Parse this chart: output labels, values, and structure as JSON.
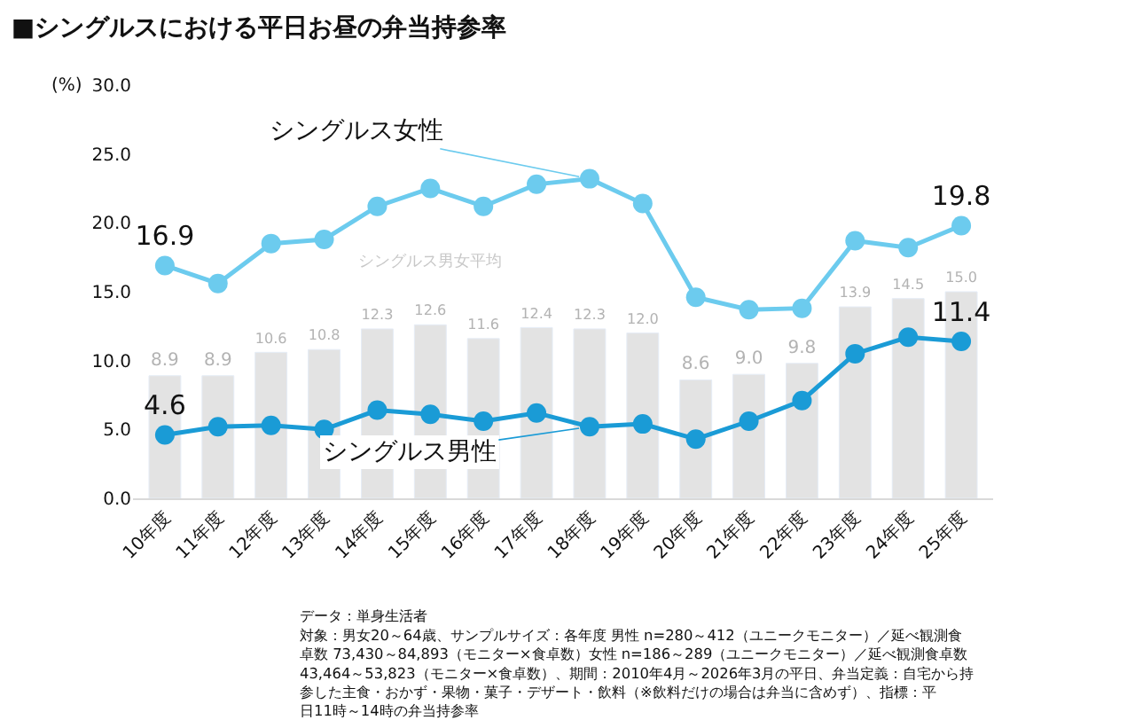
{
  "chart_data": {
    "type": "bar",
    "title": "■シングルスにおける平日お昼の弁当持参率",
    "ylabel": "(%)",
    "categories": [
      "10年度",
      "11年度",
      "12年度",
      "13年度",
      "14年度",
      "15年度",
      "16年度",
      "17年度",
      "18年度",
      "19年度",
      "20年度",
      "21年度",
      "22年度",
      "23年度",
      "24年度",
      "25年度"
    ],
    "series": [
      {
        "name": "シングルス男女平均",
        "color": "#e3e3e3",
        "values": [
          8.9,
          8.9,
          10.6,
          10.8,
          12.3,
          12.6,
          11.6,
          12.4,
          12.3,
          12.0,
          8.6,
          9.0,
          9.8,
          13.9,
          14.5,
          15.0
        ],
        "value_labels": [
          "8.9",
          "8.9",
          "10.6",
          "10.8",
          "12.3",
          "12.6",
          "11.6",
          "12.4",
          "12.3",
          "12.0",
          "8.6",
          "9.0",
          "9.8",
          "13.9",
          "14.5",
          "15.0"
        ]
      },
      {
        "name": "シングルス女性",
        "type": "line",
        "color": "#6ccbee",
        "marker": "circle",
        "values": [
          16.9,
          15.6,
          18.5,
          18.8,
          21.2,
          22.5,
          21.2,
          22.8,
          23.2,
          21.4,
          14.6,
          13.7,
          13.8,
          18.7,
          18.2,
          19.8
        ],
        "value_labels": [
          "16.9",
          null,
          null,
          null,
          null,
          null,
          null,
          null,
          null,
          null,
          null,
          null,
          null,
          null,
          null,
          "19.8"
        ]
      },
      {
        "name": "シングルス男性",
        "type": "line",
        "color": "#1a9bd6",
        "marker": "circle",
        "values": [
          4.6,
          5.2,
          5.3,
          5.0,
          6.4,
          6.1,
          5.6,
          6.2,
          5.2,
          5.4,
          4.3,
          5.6,
          7.1,
          10.5,
          11.7,
          11.4
        ],
        "value_labels": [
          "4.6",
          null,
          null,
          null,
          null,
          null,
          null,
          null,
          null,
          null,
          null,
          null,
          null,
          null,
          null,
          "11.4"
        ]
      }
    ],
    "ylim": [
      0,
      30
    ],
    "yticks": [
      {
        "value": 0,
        "label": "0.0"
      },
      {
        "value": 5,
        "label": "5.0"
      },
      {
        "value": 10,
        "label": "10.0"
      },
      {
        "value": 15,
        "label": "15.0"
      },
      {
        "value": 20,
        "label": "20.0"
      },
      {
        "value": 25,
        "label": "25.0"
      },
      {
        "value": 30,
        "label": "30.0"
      }
    ],
    "annotations": [
      "データ：単身生活者",
      "対象：男女20～64歳、サンプルサイズ：各年度 男性 n=280～412（ユニークモニター）／延べ観測食卓数 73,430～84,893（モニター×食卓数）女性 n=186～289（ユニークモニター）／延べ観測食卓数 43,464～53,823（モニター×食卓数）、期間：2010年4月～2026年3月の平日、弁当定義：自宅から持参した主食・おかず・果物・菓子・デザート・飲料（※飲料だけの場合は弁当に含めず）、指標：平日11時～14時の弁当持参率"
    ]
  }
}
